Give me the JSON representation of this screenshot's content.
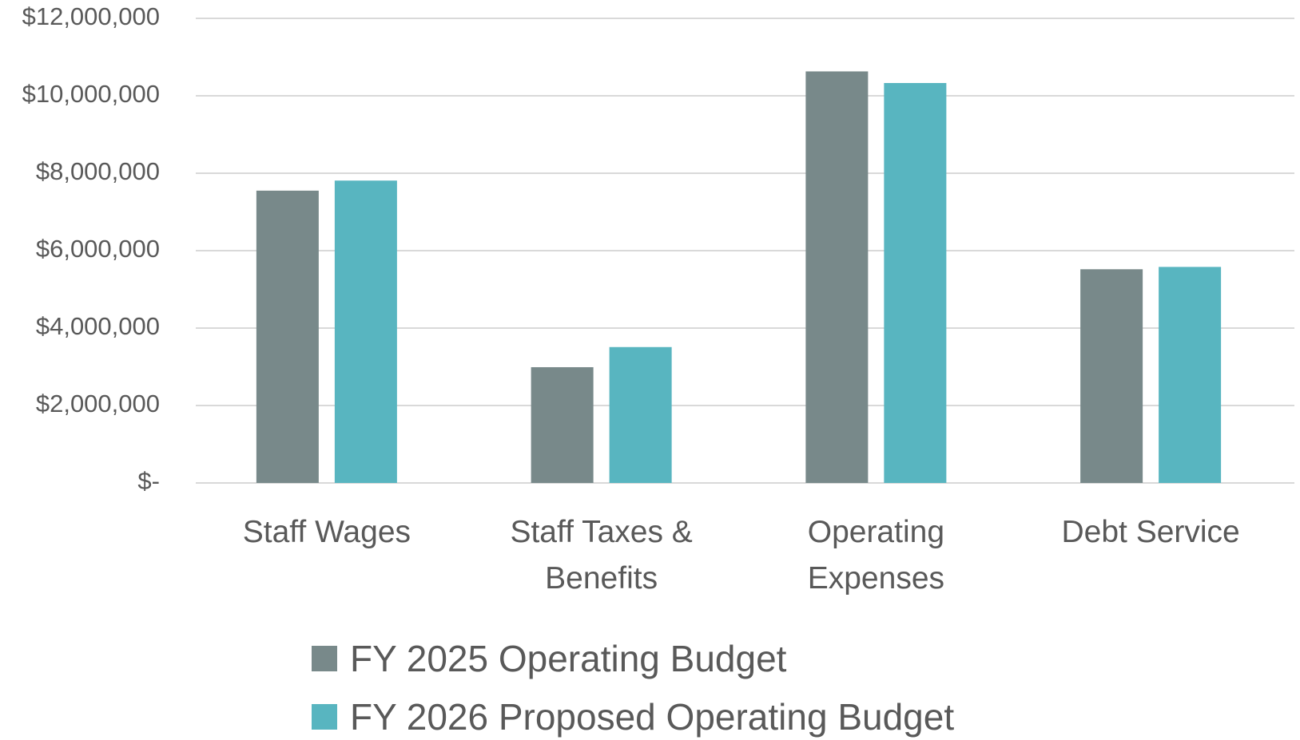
{
  "chart_data": {
    "type": "bar",
    "categories": [
      "Staff Wages",
      "Staff Taxes & Benefits",
      "Operating Expenses",
      "Debt Service"
    ],
    "series": [
      {
        "name": "FY 2025 Operating Budget",
        "color": "#78898a",
        "values": [
          7550000,
          2990000,
          10630000,
          5520000
        ]
      },
      {
        "name": "FY 2026 Proposed Operating Budget",
        "color": "#58b5c0",
        "values": [
          7810000,
          3510000,
          10330000,
          5580000
        ]
      }
    ],
    "ylim": [
      0,
      12000000
    ],
    "yticks": [
      {
        "value": 0,
        "label": "$-"
      },
      {
        "value": 2000000,
        "label": "$2,000,000"
      },
      {
        "value": 4000000,
        "label": "$4,000,000"
      },
      {
        "value": 6000000,
        "label": "$6,000,000"
      },
      {
        "value": 8000000,
        "label": "$8,000,000"
      },
      {
        "value": 10000000,
        "label": "$10,000,000"
      },
      {
        "value": 12000000,
        "label": "$12,000,000"
      }
    ],
    "grid": true,
    "legend": "bottom"
  }
}
